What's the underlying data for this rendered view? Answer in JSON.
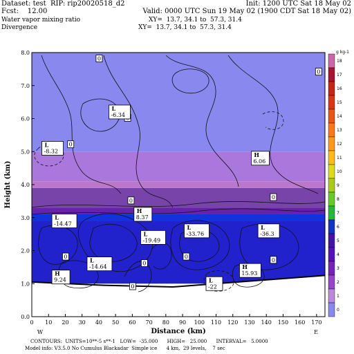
{
  "header": {
    "line1_left": "Dataset: test  RIP: rip20020518_d2",
    "line1_right": "Init: 1200 UTC Sat 18 May 02",
    "line2_left": "Fcst:    12.00",
    "line2_right": "Valid: 0000 UTC Sun 19 May 02 (1900 CDT Sat 18 May 02)",
    "line3_left": "Water vapor mixing ratio",
    "line3_right": "XY=  13.7, 34.1 to  57.3, 31.4",
    "line4_left": "Divergence",
    "line4_right": "XY=  13.7, 34.1 to  57.3, 31.4"
  },
  "footer": {
    "line1": "CONTOURS:  UNITS=10**-5 s**-1   LOW=  -35.000      HIGH=   25.000      INTERVAL=   5.0000",
    "line2": "Model info: V3.5.0 No Cumulus Blackadar  Simple ice      4 km,  29 levels,    7 sec"
  },
  "chart_data": {
    "type": "heatmap",
    "xlabel": "Distance (km)",
    "ylabel": "Height (km)",
    "xlim": [
      0,
      175
    ],
    "ylim": [
      0,
      8
    ],
    "x_ticks": [
      0,
      10,
      20,
      30,
      40,
      50,
      60,
      70,
      80,
      90,
      100,
      110,
      120,
      130,
      140,
      150,
      160,
      170
    ],
    "y_ticks": [
      "0.0",
      "1.0",
      "2.0",
      "3.0",
      "4.0",
      "5.0",
      "6.0",
      "7.0",
      "8.0"
    ],
    "x_end_labels": {
      "left": "W",
      "right": "E"
    },
    "colorbar": {
      "unit_label": "g kg-1",
      "ticks": [
        "18",
        "17",
        "16",
        "15",
        "14",
        "13",
        "12",
        "11",
        "10",
        "9",
        "8",
        "7",
        "6",
        "5",
        "4",
        "3",
        "2",
        "1",
        "0"
      ],
      "colors": [
        "#cc66aa",
        "#aa1133",
        "#cc2211",
        "#dd3311",
        "#ee5511",
        "#ff7711",
        "#ff9911",
        "#ffbb11",
        "#dddd11",
        "#aacc11",
        "#66cc22",
        "#22bb33",
        "#1133cc",
        "#4411aa",
        "#5511bb",
        "#7722bb",
        "#9944cc",
        "#bb88dd",
        "#8888ee"
      ]
    },
    "moisture_bands": [
      {
        "y_low": 0.0,
        "y_high": 1.1,
        "color": "#ffffff"
      },
      {
        "y_low": 1.0,
        "y_high": 2.9,
        "color": "#2222cc"
      },
      {
        "y_low": 2.9,
        "y_high": 3.1,
        "color": "#1133dd"
      },
      {
        "y_low": 3.1,
        "y_high": 3.3,
        "color": "#6622aa"
      },
      {
        "y_low": 3.3,
        "y_high": 3.9,
        "color": "#7744aa"
      },
      {
        "y_low": 3.9,
        "y_high": 4.1,
        "color": "#bb77cc"
      },
      {
        "y_low": 4.1,
        "y_high": 5.0,
        "color": "#aa77dd"
      },
      {
        "y_low": 5.0,
        "y_high": 8.0,
        "color": "#8888ee"
      }
    ],
    "annotations": [
      {
        "type": "L",
        "text": "-6.34",
        "x": 46,
        "y": 6.2
      },
      {
        "type": "L",
        "text": "-8.32",
        "x": 6,
        "y": 5.1
      },
      {
        "type": "H",
        "text": "6.06",
        "x": 131,
        "y": 4.8
      },
      {
        "type": "L",
        "text": "-14.47",
        "x": 12,
        "y": 2.9
      },
      {
        "type": "H",
        "text": "8.37",
        "x": 61,
        "y": 3.1
      },
      {
        "type": "L",
        "text": "-19.49",
        "x": 65,
        "y": 2.4
      },
      {
        "type": "L",
        "text": "-33.76",
        "x": 91,
        "y": 2.6
      },
      {
        "type": "L",
        "text": "-36.3",
        "x": 135,
        "y": 2.6
      },
      {
        "type": "L",
        "text": "-14.64",
        "x": 33,
        "y": 1.6
      },
      {
        "type": "H",
        "text": "9.24",
        "x": 12,
        "y": 1.2
      },
      {
        "type": "H",
        "text": "15.93",
        "x": 124,
        "y": 1.4
      },
      {
        "type": "L",
        "text": "-22",
        "x": 104,
        "y": 1.0
      }
    ],
    "zero_labels": [
      {
        "x": 40,
        "y": 7.8
      },
      {
        "x": 57,
        "y": 6.0
      },
      {
        "x": 171,
        "y": 7.4
      },
      {
        "x": 23,
        "y": 5.2
      },
      {
        "x": 59,
        "y": 3.5
      },
      {
        "x": 144,
        "y": 3.6
      },
      {
        "x": 20,
        "y": 1.8
      },
      {
        "x": 60,
        "y": 0.9
      },
      {
        "x": 67,
        "y": 1.6
      },
      {
        "x": 92,
        "y": 1.8
      },
      {
        "x": 144,
        "y": 1.7
      }
    ]
  }
}
